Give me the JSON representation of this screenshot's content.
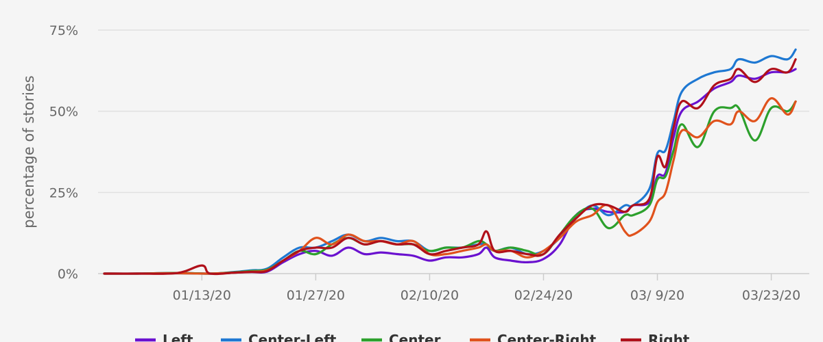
{
  "chart_data": {
    "type": "line",
    "title": "",
    "xlabel": "",
    "ylabel": "percentage of stories",
    "y_ticks": [
      {
        "value": 0,
        "label": "0%"
      },
      {
        "value": 25,
        "label": "25%"
      },
      {
        "value": 50,
        "label": "50%"
      },
      {
        "value": 75,
        "label": "75%"
      }
    ],
    "x_ticks": [
      {
        "value": "2020-01-13",
        "label": "01/13/20"
      },
      {
        "value": "2020-01-27",
        "label": "01/27/20"
      },
      {
        "value": "2020-02-10",
        "label": "02/10/20"
      },
      {
        "value": "2020-02-24",
        "label": "02/24/20"
      },
      {
        "value": "2020-03-09",
        "label": "03/ 9/20"
      },
      {
        "value": "2020-03-23",
        "label": "03/23/20"
      }
    ],
    "xlim": [
      "2020-01-01",
      "2020-03-27"
    ],
    "ylim": [
      0,
      75
    ],
    "grid": true,
    "legend_position": "bottom",
    "series": [
      {
        "name": "Left",
        "color": "#6a11cf",
        "points": [
          [
            "2020-01-01",
            0
          ],
          [
            "2020-01-05",
            0
          ],
          [
            "2020-01-10",
            0.2
          ],
          [
            "2020-01-14",
            0
          ],
          [
            "2020-01-17",
            0.3
          ],
          [
            "2020-01-19",
            0.5
          ],
          [
            "2020-01-21",
            0.6
          ],
          [
            "2020-01-23",
            3.5
          ],
          [
            "2020-01-25",
            6
          ],
          [
            "2020-01-27",
            7
          ],
          [
            "2020-01-29",
            5.5
          ],
          [
            "2020-01-31",
            8
          ],
          [
            "2020-02-02",
            6
          ],
          [
            "2020-02-04",
            6.5
          ],
          [
            "2020-02-06",
            6
          ],
          [
            "2020-02-08",
            5.5
          ],
          [
            "2020-02-10",
            4
          ],
          [
            "2020-02-12",
            5
          ],
          [
            "2020-02-14",
            5
          ],
          [
            "2020-02-16",
            6
          ],
          [
            "2020-02-17",
            8
          ],
          [
            "2020-02-18",
            5
          ],
          [
            "2020-02-20",
            4
          ],
          [
            "2020-02-22",
            3.5
          ],
          [
            "2020-02-24",
            4.5
          ],
          [
            "2020-02-26",
            9
          ],
          [
            "2020-02-28",
            18
          ],
          [
            "2020-03-01",
            20
          ],
          [
            "2020-03-03",
            19
          ],
          [
            "2020-03-05",
            19
          ],
          [
            "2020-03-06",
            21
          ],
          [
            "2020-03-08",
            22
          ],
          [
            "2020-03-09",
            30
          ],
          [
            "2020-03-10",
            31
          ],
          [
            "2020-03-11",
            42
          ],
          [
            "2020-03-12",
            50
          ],
          [
            "2020-03-14",
            53
          ],
          [
            "2020-03-16",
            57
          ],
          [
            "2020-03-18",
            59
          ],
          [
            "2020-03-19",
            61
          ],
          [
            "2020-03-21",
            60
          ],
          [
            "2020-03-23",
            62
          ],
          [
            "2020-03-25",
            62
          ],
          [
            "2020-03-26",
            63
          ]
        ]
      },
      {
        "name": "Center-Left",
        "color": "#1e78d2",
        "points": [
          [
            "2020-01-01",
            0
          ],
          [
            "2020-01-05",
            0
          ],
          [
            "2020-01-10",
            0.1
          ],
          [
            "2020-01-14",
            0
          ],
          [
            "2020-01-17",
            0.5
          ],
          [
            "2020-01-19",
            1
          ],
          [
            "2020-01-21",
            1.5
          ],
          [
            "2020-01-23",
            5
          ],
          [
            "2020-01-25",
            8
          ],
          [
            "2020-01-27",
            8
          ],
          [
            "2020-01-29",
            10
          ],
          [
            "2020-01-31",
            12
          ],
          [
            "2020-02-02",
            10
          ],
          [
            "2020-02-04",
            11
          ],
          [
            "2020-02-06",
            10
          ],
          [
            "2020-02-08",
            10
          ],
          [
            "2020-02-10",
            7
          ],
          [
            "2020-02-12",
            8
          ],
          [
            "2020-02-14",
            8
          ],
          [
            "2020-02-16",
            9
          ],
          [
            "2020-02-17",
            9
          ],
          [
            "2020-02-18",
            7
          ],
          [
            "2020-02-20",
            8
          ],
          [
            "2020-02-22",
            6
          ],
          [
            "2020-02-24",
            7
          ],
          [
            "2020-02-26",
            11
          ],
          [
            "2020-02-28",
            17
          ],
          [
            "2020-03-01",
            21
          ],
          [
            "2020-03-03",
            18
          ],
          [
            "2020-03-05",
            21
          ],
          [
            "2020-03-06",
            21
          ],
          [
            "2020-03-08",
            26
          ],
          [
            "2020-03-09",
            37
          ],
          [
            "2020-03-10",
            38
          ],
          [
            "2020-03-11",
            47
          ],
          [
            "2020-03-12",
            56
          ],
          [
            "2020-03-14",
            60
          ],
          [
            "2020-03-16",
            62
          ],
          [
            "2020-03-18",
            63
          ],
          [
            "2020-03-19",
            66
          ],
          [
            "2020-03-21",
            65
          ],
          [
            "2020-03-23",
            67
          ],
          [
            "2020-03-25",
            66
          ],
          [
            "2020-03-26",
            69
          ]
        ]
      },
      {
        "name": "Center",
        "color": "#2ca02c",
        "points": [
          [
            "2020-01-01",
            0
          ],
          [
            "2020-01-05",
            0
          ],
          [
            "2020-01-10",
            0.2
          ],
          [
            "2020-01-14",
            0
          ],
          [
            "2020-01-17",
            0.4
          ],
          [
            "2020-01-19",
            0.8
          ],
          [
            "2020-01-21",
            1.2
          ],
          [
            "2020-01-23",
            4
          ],
          [
            "2020-01-25",
            7
          ],
          [
            "2020-01-27",
            6
          ],
          [
            "2020-01-29",
            9
          ],
          [
            "2020-01-31",
            11
          ],
          [
            "2020-02-02",
            9
          ],
          [
            "2020-02-04",
            10
          ],
          [
            "2020-02-06",
            9
          ],
          [
            "2020-02-08",
            9
          ],
          [
            "2020-02-10",
            7
          ],
          [
            "2020-02-12",
            8
          ],
          [
            "2020-02-14",
            8
          ],
          [
            "2020-02-16",
            10
          ],
          [
            "2020-02-17",
            9
          ],
          [
            "2020-02-18",
            7
          ],
          [
            "2020-02-20",
            8
          ],
          [
            "2020-02-22",
            7
          ],
          [
            "2020-02-24",
            6
          ],
          [
            "2020-02-26",
            12
          ],
          [
            "2020-02-28",
            18
          ],
          [
            "2020-03-01",
            20
          ],
          [
            "2020-03-03",
            14
          ],
          [
            "2020-03-05",
            18
          ],
          [
            "2020-03-06",
            18
          ],
          [
            "2020-03-08",
            21
          ],
          [
            "2020-03-09",
            29
          ],
          [
            "2020-03-10",
            30
          ],
          [
            "2020-03-11",
            38
          ],
          [
            "2020-03-12",
            46
          ],
          [
            "2020-03-14",
            39
          ],
          [
            "2020-03-16",
            50
          ],
          [
            "2020-03-18",
            51
          ],
          [
            "2020-03-19",
            51
          ],
          [
            "2020-03-21",
            41
          ],
          [
            "2020-03-23",
            51
          ],
          [
            "2020-03-25",
            50
          ],
          [
            "2020-03-26",
            53
          ]
        ]
      },
      {
        "name": "Center-Right",
        "color": "#e0521c",
        "points": [
          [
            "2020-01-01",
            0
          ],
          [
            "2020-01-05",
            0
          ],
          [
            "2020-01-10",
            0.1
          ],
          [
            "2020-01-14",
            0
          ],
          [
            "2020-01-17",
            0.3
          ],
          [
            "2020-01-19",
            0.6
          ],
          [
            "2020-01-21",
            1
          ],
          [
            "2020-01-23",
            4
          ],
          [
            "2020-01-25",
            7
          ],
          [
            "2020-01-27",
            11
          ],
          [
            "2020-01-29",
            9
          ],
          [
            "2020-01-31",
            12
          ],
          [
            "2020-02-02",
            10
          ],
          [
            "2020-02-04",
            10
          ],
          [
            "2020-02-06",
            9
          ],
          [
            "2020-02-08",
            10
          ],
          [
            "2020-02-10",
            6
          ],
          [
            "2020-02-12",
            6
          ],
          [
            "2020-02-14",
            7
          ],
          [
            "2020-02-16",
            8
          ],
          [
            "2020-02-17",
            9
          ],
          [
            "2020-02-18",
            7
          ],
          [
            "2020-02-20",
            7
          ],
          [
            "2020-02-22",
            5
          ],
          [
            "2020-02-24",
            7
          ],
          [
            "2020-02-26",
            11
          ],
          [
            "2020-02-28",
            16
          ],
          [
            "2020-03-01",
            18
          ],
          [
            "2020-03-03",
            21
          ],
          [
            "2020-03-05",
            13
          ],
          [
            "2020-03-06",
            12
          ],
          [
            "2020-03-08",
            16
          ],
          [
            "2020-03-09",
            22
          ],
          [
            "2020-03-10",
            25
          ],
          [
            "2020-03-11",
            35
          ],
          [
            "2020-03-12",
            44
          ],
          [
            "2020-03-14",
            42
          ],
          [
            "2020-03-16",
            47
          ],
          [
            "2020-03-18",
            46
          ],
          [
            "2020-03-19",
            50
          ],
          [
            "2020-03-21",
            47
          ],
          [
            "2020-03-23",
            54
          ],
          [
            "2020-03-25",
            49
          ],
          [
            "2020-03-26",
            53
          ]
        ]
      },
      {
        "name": "Right",
        "color": "#b0101a",
        "points": [
          [
            "2020-01-01",
            0
          ],
          [
            "2020-01-05",
            0
          ],
          [
            "2020-01-10",
            0.2
          ],
          [
            "2020-01-13",
            2.5
          ],
          [
            "2020-01-14",
            0
          ],
          [
            "2020-01-17",
            0.3
          ],
          [
            "2020-01-19",
            0.5
          ],
          [
            "2020-01-21",
            0.8
          ],
          [
            "2020-01-23",
            4
          ],
          [
            "2020-01-25",
            7
          ],
          [
            "2020-01-27",
            8
          ],
          [
            "2020-01-29",
            8
          ],
          [
            "2020-01-31",
            11
          ],
          [
            "2020-02-02",
            9
          ],
          [
            "2020-02-04",
            10
          ],
          [
            "2020-02-06",
            9
          ],
          [
            "2020-02-08",
            9
          ],
          [
            "2020-02-10",
            6
          ],
          [
            "2020-02-12",
            7
          ],
          [
            "2020-02-14",
            8
          ],
          [
            "2020-02-16",
            9
          ],
          [
            "2020-02-17",
            13
          ],
          [
            "2020-02-18",
            7
          ],
          [
            "2020-02-20",
            7
          ],
          [
            "2020-02-22",
            6
          ],
          [
            "2020-02-24",
            6
          ],
          [
            "2020-02-26",
            12
          ],
          [
            "2020-02-28",
            17
          ],
          [
            "2020-03-01",
            21
          ],
          [
            "2020-03-03",
            21
          ],
          [
            "2020-03-05",
            19
          ],
          [
            "2020-03-06",
            21
          ],
          [
            "2020-03-08",
            23
          ],
          [
            "2020-03-09",
            36
          ],
          [
            "2020-03-10",
            33
          ],
          [
            "2020-03-11",
            45
          ],
          [
            "2020-03-12",
            53
          ],
          [
            "2020-03-14",
            51
          ],
          [
            "2020-03-16",
            58
          ],
          [
            "2020-03-18",
            60
          ],
          [
            "2020-03-19",
            63
          ],
          [
            "2020-03-21",
            59
          ],
          [
            "2020-03-23",
            63
          ],
          [
            "2020-03-25",
            62
          ],
          [
            "2020-03-26",
            66
          ]
        ]
      }
    ]
  }
}
